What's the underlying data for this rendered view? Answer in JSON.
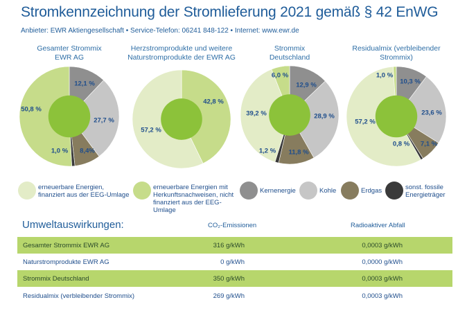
{
  "header": {
    "title": "Stromkennzeichnung der Stromlieferung 2021 gemäß § 42 EnWG",
    "subtitle": "Anbieter: EWR Aktiengesellschaft • Service-Telefon: 06241 848-122 • Internet: www.ewr.de"
  },
  "colors": {
    "ee_eeg": "#e3ecc7",
    "ee_hkn": "#c6dc8a",
    "kern": "#8f8f8f",
    "kohle": "#c6c6c6",
    "erdgas": "#877c5e",
    "fossil": "#3a3a3a",
    "center": "#8cc23a",
    "label": "#1f4e8c"
  },
  "legend": [
    {
      "key": "ee_eeg",
      "label": "erneuerbare Energien, finanziert aus der EEG-Umlage"
    },
    {
      "key": "ee_hkn",
      "label": "erneuerbare Energien mit Herkunftsnachweisen, nicht finanziert aus der EEG-Umlage"
    },
    {
      "key": "kern",
      "label": "Kernenergie"
    },
    {
      "key": "kohle",
      "label": "Kohle"
    },
    {
      "key": "erdgas",
      "label": "Erdgas"
    },
    {
      "key": "fossil",
      "label": "sonst. fossile Energieträger"
    }
  ],
  "chart_data": [
    {
      "type": "pie",
      "title": "Gesamter Strommix EWR AG",
      "slices": [
        {
          "key": "kern",
          "value": 12.1,
          "label": "12,1 %"
        },
        {
          "key": "kohle",
          "value": 27.7,
          "label": "27,7 %"
        },
        {
          "key": "erdgas",
          "value": 8.4,
          "label": "8,4%"
        },
        {
          "key": "fossil",
          "value": 1.0,
          "label": "1,0 %"
        },
        {
          "key": "ee_hkn",
          "value": 50.8,
          "label": "50,8 %"
        }
      ]
    },
    {
      "type": "pie",
      "title": "Herzstromprodukte und weitere Naturstromprodukte der EWR AG",
      "slices": [
        {
          "key": "ee_hkn",
          "value": 42.8,
          "label": "42,8 %"
        },
        {
          "key": "ee_eeg",
          "value": 57.2,
          "label": "57,2 %"
        }
      ]
    },
    {
      "type": "pie",
      "title": "Strommix Deutschland",
      "slices": [
        {
          "key": "kern",
          "value": 12.9,
          "label": "12,9 %"
        },
        {
          "key": "kohle",
          "value": 28.9,
          "label": "28,9 %"
        },
        {
          "key": "erdgas",
          "value": 11.8,
          "label": "11,8 %"
        },
        {
          "key": "fossil",
          "value": 1.2,
          "label": "1,2 %"
        },
        {
          "key": "ee_eeg",
          "value": 39.2,
          "label": "39,2 %"
        },
        {
          "key": "ee_hkn",
          "value": 6.0,
          "label": "6,0 %"
        }
      ]
    },
    {
      "type": "pie",
      "title": "Residualmix (verbleibender Strommix)",
      "slices": [
        {
          "key": "kern",
          "value": 10.3,
          "label": "10,3 %"
        },
        {
          "key": "kohle",
          "value": 23.6,
          "label": "23,6 %"
        },
        {
          "key": "erdgas",
          "value": 7.1,
          "label": "7,1 %"
        },
        {
          "key": "fossil",
          "value": 0.8,
          "label": "0,8 %"
        },
        {
          "key": "ee_eeg",
          "value": 57.2,
          "label": "57,2 %"
        },
        {
          "key": "ee_hkn",
          "value": 1.0,
          "label": "1,0 %"
        }
      ]
    }
  ],
  "environment": {
    "title": "Umweltauswirkungen:",
    "col_co2": "CO₂-Emissionen",
    "col_waste": "Radioaktiver Abfall",
    "rows": [
      {
        "name": "Gesamter Strommix EWR AG",
        "co2": "316 g/kWh",
        "waste": "0,0003 g/kWh"
      },
      {
        "name": "Naturstromprodukte EWR AG",
        "co2": "0 g/kWh",
        "waste": "0,0000 g/kWh"
      },
      {
        "name": "Strommix Deutschland",
        "co2": "350 g/kWh",
        "waste": "0,0003 g/kWh"
      },
      {
        "name": "Residualmix (verbleibender Strommix)",
        "co2": "269 g/kWh",
        "waste": "0,0003 g/kWh"
      }
    ]
  }
}
